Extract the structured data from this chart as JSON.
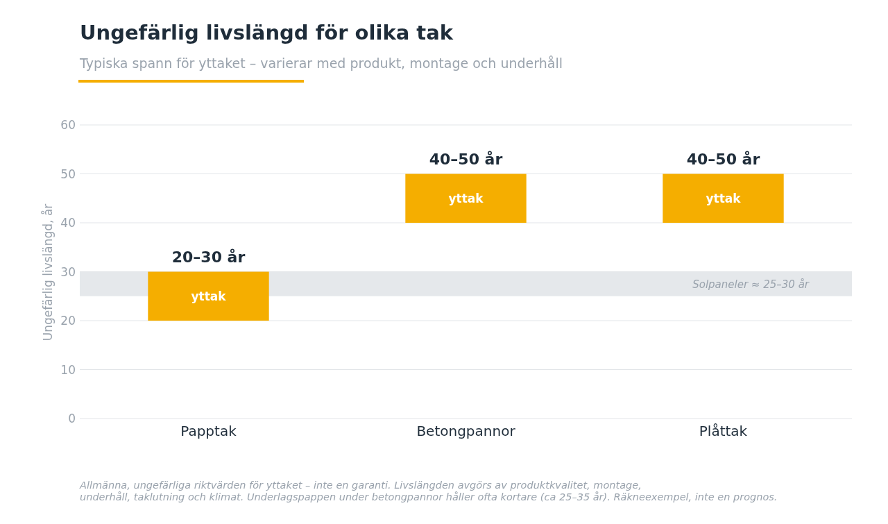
{
  "chart_data": {
    "type": "bar",
    "title": "Ungefärlig livslängd för olika tak",
    "subtitle": "Typiska spann för yttaket – varierar med produkt, montage och underhåll",
    "ylabel": "Ungefärlig livslängd, år",
    "categories": [
      "Papptak",
      "Betongpannor",
      "Plåttak"
    ],
    "series": [
      {
        "name": "yttak",
        "color": "#f5ae00",
        "values": [
          10,
          10,
          10
        ],
        "base": [
          20,
          40,
          40
        ]
      }
    ],
    "value_labels": [
      "20–30 år",
      "40–50 år",
      "40–50 år"
    ],
    "ylim": [
      0,
      60
    ],
    "yticks": [
      0,
      10,
      20,
      30,
      40,
      50,
      60
    ],
    "grid": "y",
    "bands": [
      {
        "axis": "y",
        "from": 25,
        "to": 30,
        "label": "Solpaneler ≈ 25–30 år",
        "color": "#e5e8eb"
      }
    ],
    "annotations": [
      "Allmänna, ungefärliga riktvärden för yttaket – inte en garanti. Livslängden avgörs av produktkvalitet, montage, underhåll, taklutning och klimat. Underlagspappen under betongpannor håller ofta kortare (ca 25–35 år). Räkneexempel, inte en prognos."
    ]
  }
}
